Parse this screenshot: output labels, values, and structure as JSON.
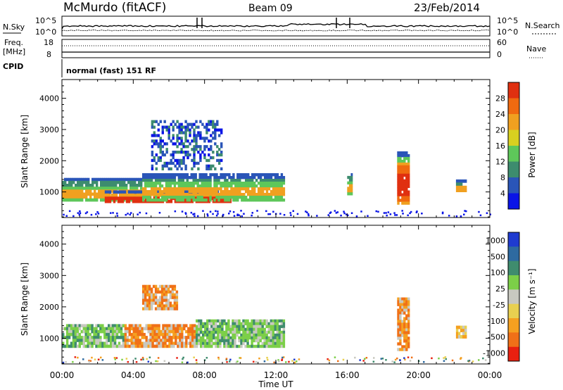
{
  "header": {
    "station": "McMurdo (fitACF)",
    "beam": "Beam 09",
    "date": "23/Feb/2014"
  },
  "top_panel": {
    "left_label_nsky": "N.Sky",
    "right_label_nsearch": "N.Search",
    "tick_hi": "10^5",
    "tick_lo": "10^0",
    "left_label_freq_top": "Freq.",
    "left_label_freq_unit": "[MHz]",
    "freq_tick_hi": "18",
    "freq_tick_lo": "8",
    "right_label_nave": "Nave",
    "nave_tick_hi": "60",
    "nave_tick_lo": "0",
    "cpid_label": "CPID",
    "cpid_value": "normal (fast) 151 RF"
  },
  "colors": {
    "power_scale": [
      "#0a14e6",
      "#2a55b8",
      "#3d8c6e",
      "#5ec75a",
      "#d8d020",
      "#f0a020",
      "#f06a10",
      "#e03010"
    ],
    "velocity_scale": [
      "#1f3bd0",
      "#2e6aa0",
      "#3f8c6e",
      "#7ccf48",
      "#c8c8c0",
      "#e8d050",
      "#f5a020",
      "#f07018",
      "#e82010"
    ]
  },
  "chart_data": [
    {
      "type": "heatmap",
      "title": "",
      "xlabel": "",
      "ylabel": "Slant Range [km]",
      "xlim_hours": [
        0,
        24
      ],
      "ylim": [
        180,
        4600
      ],
      "yticks": [
        "1000",
        "2000",
        "3000",
        "4000"
      ],
      "colorbar": {
        "label": "Power [dB]",
        "ticks": [
          "4",
          "8",
          "12",
          "16",
          "20",
          "24",
          "28"
        ],
        "range": [
          0,
          32
        ]
      },
      "echo_regions": [
        {
          "t0": 0.0,
          "t1": 4.5,
          "r0": 700,
          "r1": 1450,
          "level": "medium"
        },
        {
          "t0": 2.4,
          "t1": 9.5,
          "r0": 650,
          "r1": 1050,
          "level": "strong"
        },
        {
          "t0": 4.5,
          "t1": 12.5,
          "r0": 700,
          "r1": 1600,
          "level": "medium"
        },
        {
          "t0": 5.0,
          "t1": 9.0,
          "r0": 1700,
          "r1": 3300,
          "level": "weak"
        },
        {
          "t0": 16.0,
          "t1": 16.3,
          "r0": 900,
          "r1": 1600,
          "level": "medium"
        },
        {
          "t0": 18.8,
          "t1": 19.5,
          "r0": 600,
          "r1": 2300,
          "level": "strong"
        },
        {
          "t0": 22.1,
          "t1": 22.7,
          "r0": 1000,
          "r1": 1400,
          "level": "medium"
        }
      ]
    },
    {
      "type": "heatmap",
      "title": "",
      "xlabel": "Time UT",
      "ylabel": "Slant Range [km]",
      "xlim_hours": [
        0,
        24
      ],
      "ylim": [
        180,
        4600
      ],
      "xticks": [
        "00:00",
        "04:00",
        "08:00",
        "12:00",
        "16:00",
        "20:00",
        "00:00"
      ],
      "yticks": [
        "1000",
        "2000",
        "3000",
        "4000"
      ],
      "colorbar": {
        "label": "Velocity [m s⁻¹]",
        "ticks": [
          "1000",
          "500",
          "100",
          "25",
          "-25",
          "-100",
          "-500",
          "-1000"
        ]
      },
      "echo_regions": [
        {
          "t0": 0.0,
          "t1": 3.5,
          "r0": 700,
          "r1": 1450,
          "level": "+100"
        },
        {
          "t0": 3.5,
          "t1": 7.5,
          "r0": 700,
          "r1": 1450,
          "level": "-500"
        },
        {
          "t0": 7.5,
          "t1": 12.5,
          "r0": 700,
          "r1": 1600,
          "level": "+100"
        },
        {
          "t0": 4.5,
          "t1": 6.5,
          "r0": 1900,
          "r1": 2700,
          "level": "-500"
        },
        {
          "t0": 18.8,
          "t1": 19.5,
          "r0": 600,
          "r1": 2300,
          "level": "-500"
        },
        {
          "t0": 22.1,
          "t1": 22.7,
          "r0": 1000,
          "r1": 1400,
          "level": "-100"
        }
      ]
    }
  ]
}
